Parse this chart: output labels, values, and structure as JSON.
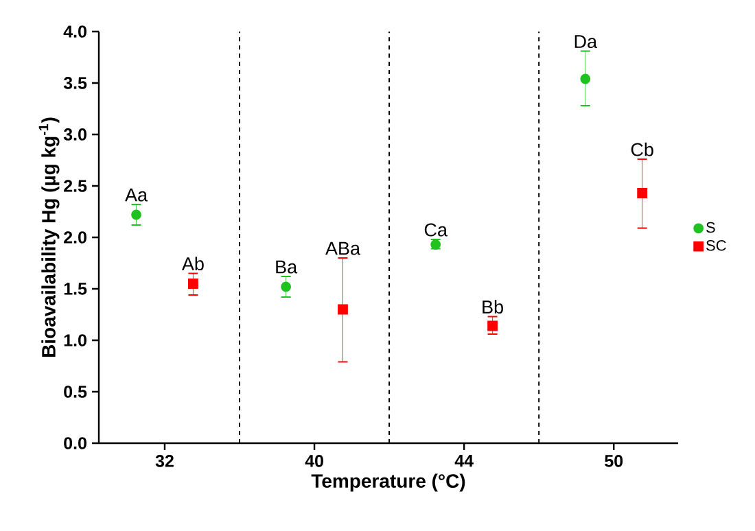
{
  "chart_data": {
    "type": "scatter",
    "xlabel": "Temperature (°C)",
    "ylabel": "Bioavailability Hg (µg kg$^{-1}$)",
    "categories": [
      "32",
      "40",
      "44",
      "50"
    ],
    "ylim": [
      0,
      4
    ],
    "yticks": [
      {
        "value": 0,
        "label": "0.0"
      },
      0.5,
      {
        "value": 1,
        "label": "1.0"
      },
      1.5,
      {
        "value": 2,
        "label": "2.0"
      },
      2.5,
      {
        "value": 3,
        "label": "3.0"
      },
      3.5,
      {
        "value": 4,
        "label": "4.0"
      }
    ],
    "legend": "right",
    "grid": false,
    "series": [
      {
        "name": "S",
        "color": "#1fc21f",
        "marker": "circle",
        "values": [
          2.22,
          1.52,
          1.93,
          3.54
        ],
        "errors": [
          [
            2.12,
            2.32
          ],
          [
            1.42,
            1.62
          ],
          [
            1.89,
            1.98
          ],
          [
            3.28,
            3.81
          ]
        ],
        "value_labels": [
          "Aa",
          "Ba",
          "Ca",
          "Da"
        ]
      },
      {
        "name": "SC",
        "color": "#ff0000",
        "marker": "square",
        "values": [
          1.55,
          1.3,
          1.14,
          2.43
        ],
        "errors": [
          [
            1.44,
            1.65
          ],
          [
            0.79,
            1.8
          ],
          [
            1.06,
            1.23
          ],
          [
            2.09,
            2.76
          ]
        ],
        "value_labels": [
          "Ab",
          "ABa",
          "Bb",
          "Cb"
        ]
      }
    ]
  }
}
